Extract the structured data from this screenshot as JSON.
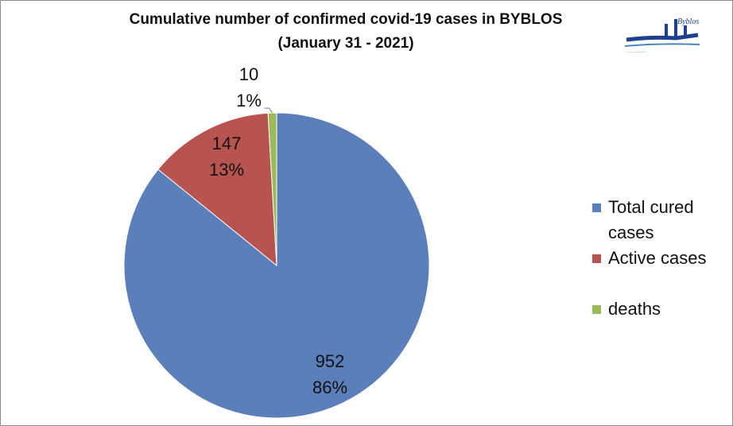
{
  "chart_data": {
    "type": "pie",
    "title": "Cumulative number of confirmed covid-19 cases in BYBLOS",
    "subtitle": "(January 31 - 2021)",
    "categories": [
      "Total cured cases",
      "Active cases",
      "deaths"
    ],
    "values": [
      952,
      147,
      10
    ],
    "percent_labels": [
      "86%",
      "13%",
      "1%"
    ],
    "value_labels": [
      "952",
      "147",
      "10"
    ],
    "colors": [
      "#5b7fba",
      "#b85450",
      "#9bbb59"
    ],
    "legend_position": "right"
  },
  "logo": {
    "text": "Byblos",
    "name": "byblos-municipality-logo"
  }
}
